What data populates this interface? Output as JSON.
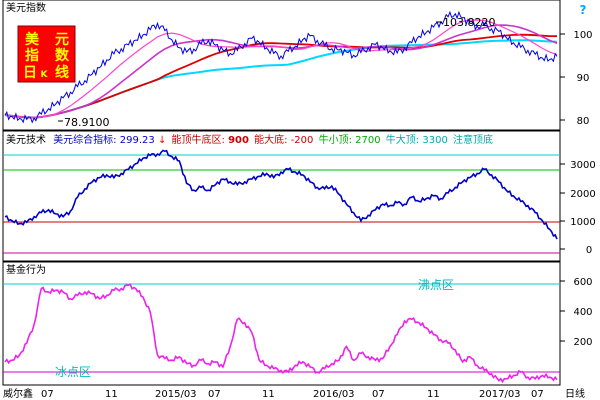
{
  "panel_top": {
    "title": "美元指数",
    "badge": [
      "美",
      "元",
      "指",
      "数",
      "日",
      "K",
      "线"
    ],
    "help_icon": "?",
    "peak_label": "103.8220",
    "low_label": "78.9100",
    "yticks": [
      "100",
      "90",
      "80"
    ],
    "colors": {
      "k": "#0000e6",
      "ma_purple": "#cc33cc",
      "ma_red": "#dd0000",
      "ma_cyan": "#00d8ff",
      "ma_pink": "#ff44cc"
    }
  },
  "panel_mid": {
    "name": "美元技术",
    "indicator_label": "美元综合指标:",
    "indicator_value": "299.23",
    "arrow": "↓",
    "legend": [
      {
        "label": "能顶牛底区:",
        "value": "900",
        "color": "#cc0000"
      },
      {
        "label": "能大底:",
        "value": "-200",
        "color": "#cc0000"
      },
      {
        "label": "牛小顶:",
        "value": "2700",
        "color": "#00aa00"
      },
      {
        "label": "牛大顶:",
        "value": "3300",
        "color": "#00aaaa"
      },
      {
        "label": "注意顶底",
        "value": "",
        "color": "#00aaaa"
      }
    ],
    "yticks": [
      "3000",
      "2000",
      "1000",
      "0"
    ],
    "series_color": "#0000cc"
  },
  "panel_bottom": {
    "title": "基金行为",
    "boil_label": "沸点区",
    "freeze_label": "冰点区",
    "yticks": [
      "600",
      "400",
      "200"
    ],
    "series_color": "#ee22ee"
  },
  "x_axis": {
    "labels": [
      "威尔鑫",
      "07",
      "11",
      "2015/03",
      "07",
      "11",
      "2016/03",
      "07",
      "11",
      "2017/03",
      "07"
    ],
    "period": "日线"
  },
  "chart_data": [
    {
      "type": "line",
      "title": "美元指数",
      "ylim": [
        77,
        106
      ],
      "yticks": [
        100,
        90,
        80
      ],
      "annotations": [
        {
          "text": "103.8220",
          "value": 103.822
        },
        {
          "text": "78.9100",
          "value": 78.91
        }
      ],
      "series": [
        {
          "role": "price",
          "values": [
            80,
            79.6,
            79.2,
            79.0,
            79.3,
            80.2,
            81.5,
            82.6,
            84.0,
            85.3,
            86.6,
            88.0,
            89.5,
            91.0,
            92.8,
            94.2,
            95.4,
            96.3,
            97.4,
            98.6,
            99.8,
            101.3,
            99.6,
            97.4,
            95.6,
            94.6,
            95.3,
            96.5,
            97.3,
            96.2,
            95.1,
            94.3,
            95.0,
            96.6,
            97.8,
            96.9,
            95.6,
            94.3,
            93.7,
            94.8,
            96.0,
            97.5,
            98.4,
            97.3,
            96.1,
            95.4,
            95.1,
            94.6,
            93.9,
            94.5,
            95.6,
            96.4,
            95.6,
            94.9,
            94.4,
            95.6,
            96.8,
            98.3,
            99.2,
            100.4,
            101.6,
            102.8,
            103.5,
            102.6,
            101.3,
            100.6,
            100.9,
            100.0,
            99.4,
            98.0,
            96.8,
            95.7,
            95.0,
            94.1,
            93.2,
            92.9,
            93.6
          ]
        }
      ]
    },
    {
      "type": "line",
      "title": "美元综合指标",
      "ylim": [
        -200,
        3600
      ],
      "yticks": [
        3000,
        2000,
        1000,
        0
      ],
      "reference_lines": [
        {
          "name": "牛大顶",
          "value": 3300
        },
        {
          "name": "牛小顶",
          "value": 2700
        },
        {
          "name": "能顶牛底区",
          "value": 900
        },
        {
          "name": "能大底",
          "value": -200
        }
      ],
      "series": [
        {
          "name": "美元综合指标",
          "values": [
            1100,
            950,
            850,
            900,
            1100,
            1250,
            1350,
            1200,
            1100,
            1300,
            1800,
            2100,
            2350,
            2500,
            2600,
            2500,
            2650,
            2800,
            3000,
            3200,
            3300,
            3350,
            3450,
            3250,
            3100,
            2300,
            2050,
            2150,
            2050,
            2250,
            2450,
            2350,
            2250,
            2350,
            2450,
            2550,
            2650,
            2500,
            2700,
            2800,
            2700,
            2600,
            2350,
            2150,
            2100,
            2200,
            1900,
            1550,
            1250,
            950,
            1150,
            1350,
            1550,
            1500,
            1600,
            1550,
            1800,
            1650,
            1750,
            1850,
            1750,
            1950,
            2150,
            2350,
            2500,
            2650,
            2800,
            2600,
            2350,
            2050,
            1850,
            1650,
            1500,
            1250,
            950,
            650,
            299
          ]
        }
      ]
    },
    {
      "type": "line",
      "title": "基金行为",
      "ylim": [
        0,
        640
      ],
      "yticks": [
        600,
        400,
        200
      ],
      "reference_lines": [
        {
          "name": "沸点区",
          "value": 560
        },
        {
          "name": "冰点区",
          "value": 20
        }
      ],
      "series": [
        {
          "name": "基金行为",
          "values": [
            130,
            140,
            170,
            240,
            350,
            560,
            540,
            550,
            540,
            500,
            520,
            540,
            530,
            500,
            520,
            550,
            560,
            580,
            560,
            510,
            420,
            170,
            150,
            140,
            160,
            120,
            110,
            140,
            120,
            130,
            100,
            220,
            380,
            360,
            300,
            140,
            110,
            90,
            80,
            70,
            110,
            130,
            100,
            70,
            90,
            120,
            140,
            220,
            140,
            180,
            160,
            140,
            150,
            220,
            290,
            370,
            380,
            360,
            330,
            290,
            260,
            240,
            200,
            130,
            160,
            110,
            80,
            60,
            20,
            30,
            50,
            70,
            40,
            30,
            50,
            40,
            25
          ]
        }
      ]
    }
  ]
}
